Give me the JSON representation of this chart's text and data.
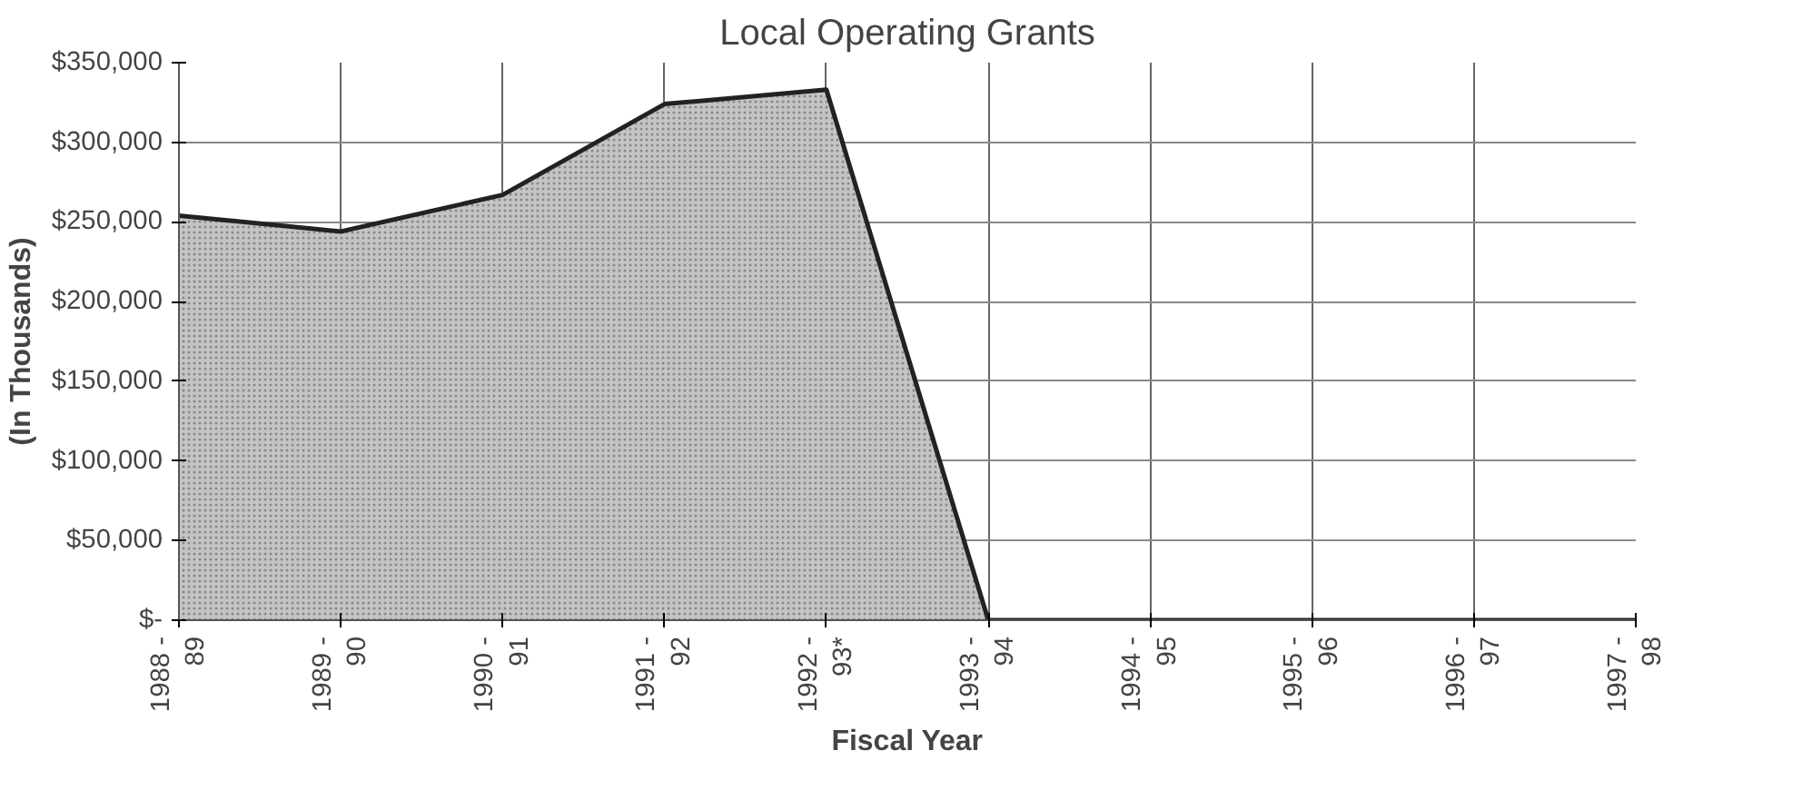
{
  "chart_data": {
    "type": "area",
    "title": "Local Operating Grants",
    "xlabel": "Fiscal Year",
    "ylabel": "(In Thousands)",
    "categories": [
      "1988 -\n89",
      "1989 -\n90",
      "1990 -\n91",
      "1991 -\n92",
      "1992 -\n93*",
      "1993 -\n94",
      "1994 -\n95",
      "1995 -\n96",
      "1996 -\n97",
      "1997 -\n98"
    ],
    "series": [
      {
        "color": "#c4c4c4",
        "values": [
          254000,
          244000,
          267000,
          324000,
          333000,
          0,
          0,
          0,
          0,
          0
        ]
      }
    ],
    "ylim": [
      0,
      350000
    ],
    "yticks": [
      {
        "value": 0,
        "label": "$-"
      },
      {
        "value": 50000,
        "label": "$50,000"
      },
      {
        "value": 100000,
        "label": "$100,000"
      },
      {
        "value": 150000,
        "label": "$150,000"
      },
      {
        "value": 200000,
        "label": "$200,000"
      },
      {
        "value": 250000,
        "label": "$250,000"
      },
      {
        "value": 300000,
        "label": "$300,000"
      },
      {
        "value": 350000,
        "label": "$350,000"
      }
    ],
    "grid": true
  }
}
